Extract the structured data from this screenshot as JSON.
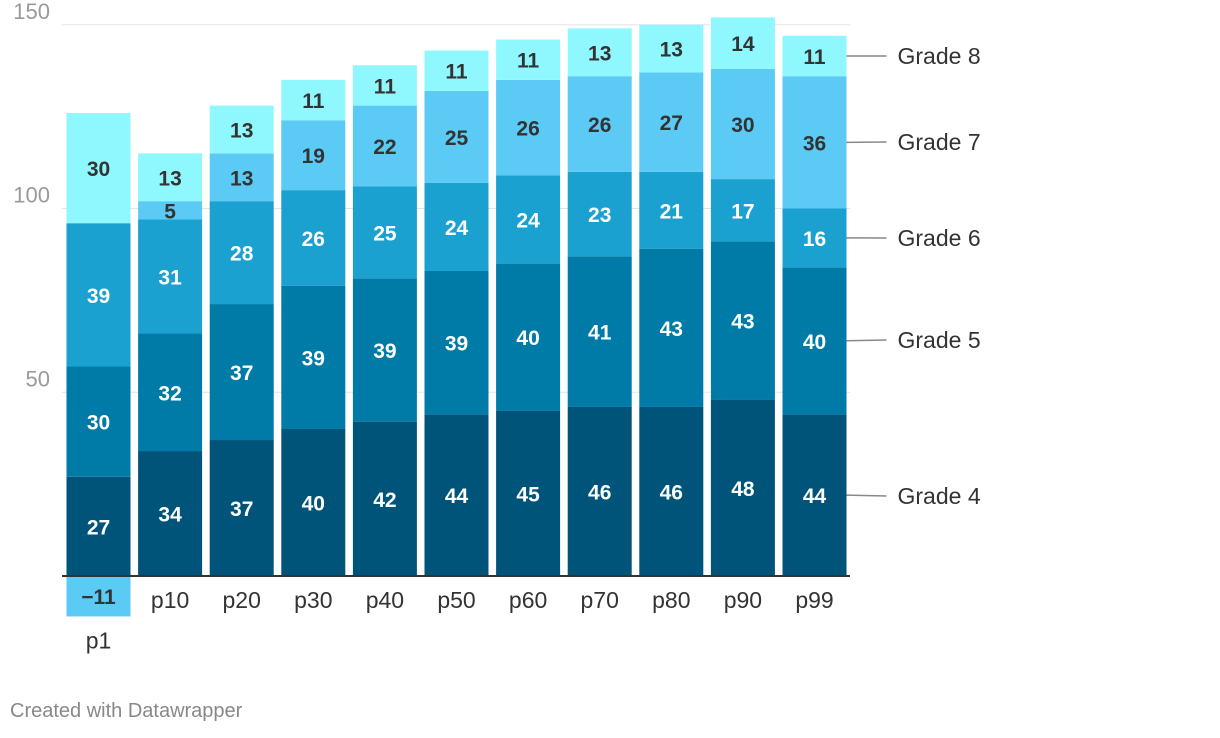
{
  "chart_data": {
    "type": "bar",
    "stacked": true,
    "categories": [
      "p1",
      "p10",
      "p20",
      "p30",
      "p40",
      "p50",
      "p60",
      "p70",
      "p80",
      "p90",
      "p99"
    ],
    "series": [
      {
        "name": "Grade 4",
        "color": "#005479",
        "values": [
          27,
          34,
          37,
          40,
          42,
          44,
          45,
          46,
          46,
          48,
          44
        ]
      },
      {
        "name": "Grade 5",
        "color": "#007aa6",
        "values": [
          30,
          32,
          37,
          39,
          39,
          39,
          40,
          41,
          43,
          43,
          40
        ]
      },
      {
        "name": "Grade 6",
        "color": "#1aa1cf",
        "values": [
          39,
          31,
          28,
          26,
          25,
          24,
          24,
          23,
          21,
          17,
          16
        ]
      },
      {
        "name": "Grade 7",
        "color": "#5bcaf5",
        "values": [
          -11,
          5,
          13,
          19,
          22,
          25,
          26,
          26,
          27,
          30,
          36
        ]
      },
      {
        "name": "Grade 8",
        "color": "#8ff8ff",
        "values": [
          30,
          13,
          13,
          11,
          11,
          11,
          11,
          13,
          13,
          14,
          11
        ]
      }
    ],
    "y_ticks": [
      50,
      100,
      150
    ],
    "ylim": [
      0,
      150
    ],
    "title": "",
    "xlabel": "",
    "ylabel": "",
    "grid": true,
    "legend": "right, inline labels"
  },
  "footer": {
    "credit": "Created with Datawrapper"
  }
}
